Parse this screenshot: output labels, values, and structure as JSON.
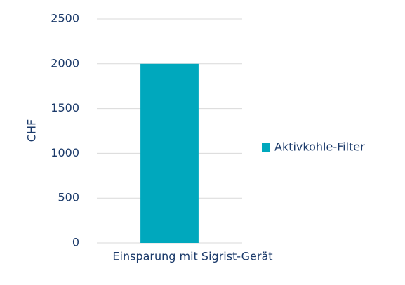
{
  "chart_data": {
    "type": "bar",
    "categories": [
      "Einsparung mit Sigrist-Gerät"
    ],
    "series": [
      {
        "name": "Aktivkohle-Filter",
        "color": "#00a8bd",
        "values": [
          2000
        ]
      }
    ],
    "ylabel": "CHF",
    "ylim": [
      0,
      2500
    ],
    "yticks": [
      0,
      500,
      1000,
      1500,
      2000,
      2500
    ],
    "grid": true,
    "legend": "right"
  }
}
